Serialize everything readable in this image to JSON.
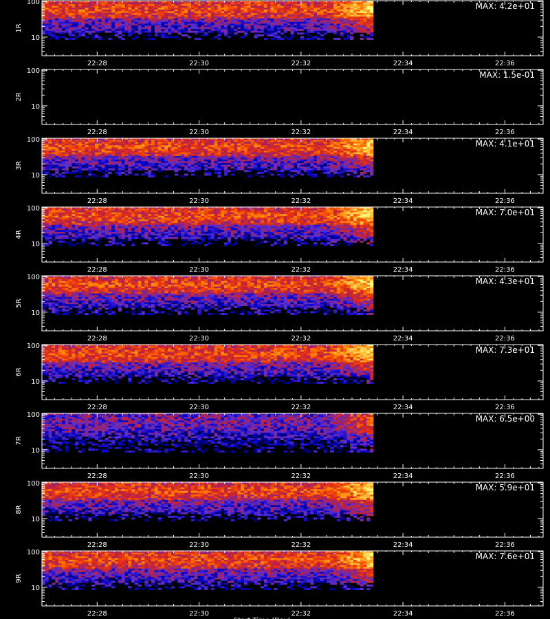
{
  "chart_data": {
    "type": "heatmap",
    "panels": [
      {
        "channel": "1R",
        "max_label": "MAX: 4.2e+01",
        "has_data": true
      },
      {
        "channel": "2R",
        "max_label": "MAX: 1.5e-01",
        "has_data": false
      },
      {
        "channel": "3R",
        "max_label": "MAX: 4.1e+01",
        "has_data": true
      },
      {
        "channel": "4R",
        "max_label": "MAX: 7.0e+01",
        "has_data": true
      },
      {
        "channel": "5R",
        "max_label": "MAX: 4.3e+01",
        "has_data": true
      },
      {
        "channel": "6R",
        "max_label": "MAX: 7.3e+01",
        "has_data": true
      },
      {
        "channel": "7R",
        "max_label": "MAX: 6.5e+00",
        "has_data": true
      },
      {
        "channel": "8R",
        "max_label": "MAX: 5.9e+01",
        "has_data": true
      },
      {
        "channel": "9R",
        "max_label": "MAX: 7.6e+01",
        "has_data": true
      }
    ],
    "x_tick_labels": [
      "22:28",
      "22:30",
      "22:32",
      "22:34",
      "22:36"
    ],
    "x_range": [
      "22:26:55",
      "22:36:45"
    ],
    "data_end": "22:33:25",
    "y_tick_labels": [
      "10",
      "100"
    ],
    "y_range": [
      3,
      105
    ],
    "y_scale": "log",
    "colormap": [
      "#000000",
      "#0000c8",
      "#5a2fd0",
      "#b02050",
      "#e83010",
      "#ff7a00",
      "#ffc040",
      "#ffff80"
    ],
    "bottom_label": "Start Time (Dayl..."
  }
}
